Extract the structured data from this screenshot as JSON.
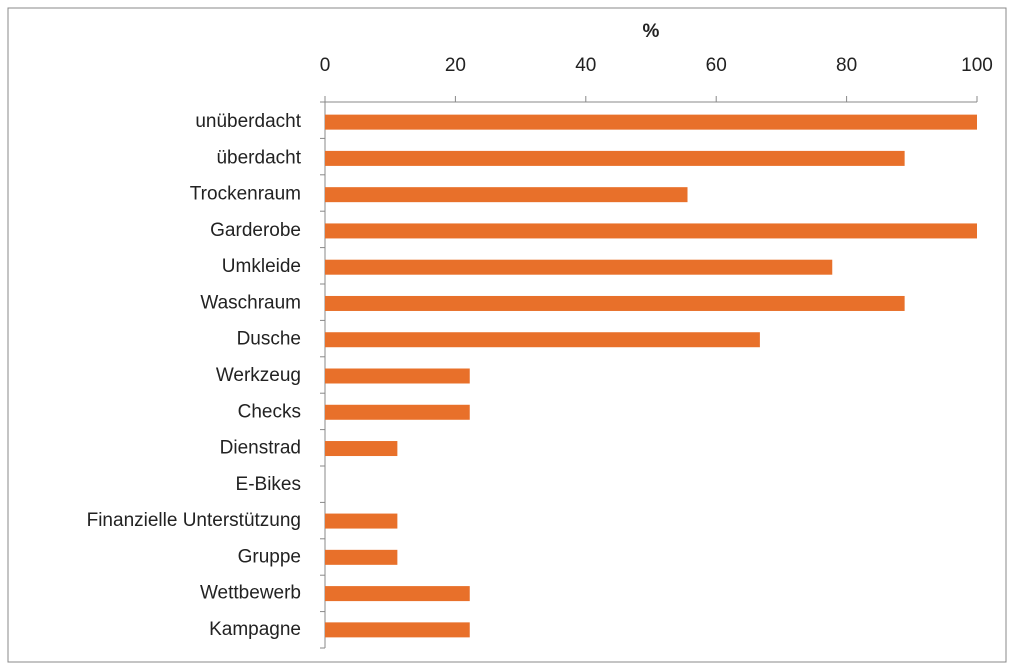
{
  "chart_data": {
    "type": "bar",
    "orientation": "horizontal",
    "x_label": "%",
    "categories": [
      "unüberdacht",
      "überdacht",
      "Trockenraum",
      "Garderobe",
      "Umkleide",
      "Waschraum",
      "Dusche",
      "Werkzeug",
      "Checks",
      "Dienstrad",
      "E-Bikes",
      "Finanzielle Unterstützung",
      "Gruppe",
      "Wettbewerb",
      "Kampagne"
    ],
    "values": [
      100,
      88.9,
      55.6,
      100,
      77.8,
      88.9,
      66.7,
      22.2,
      22.2,
      11.1,
      0,
      11.1,
      11.1,
      22.2,
      22.2
    ],
    "color": "#e8702a",
    "xlim": [
      0,
      100
    ],
    "xticks": [
      0,
      20,
      40,
      60,
      80,
      100
    ],
    "grid": false
  }
}
